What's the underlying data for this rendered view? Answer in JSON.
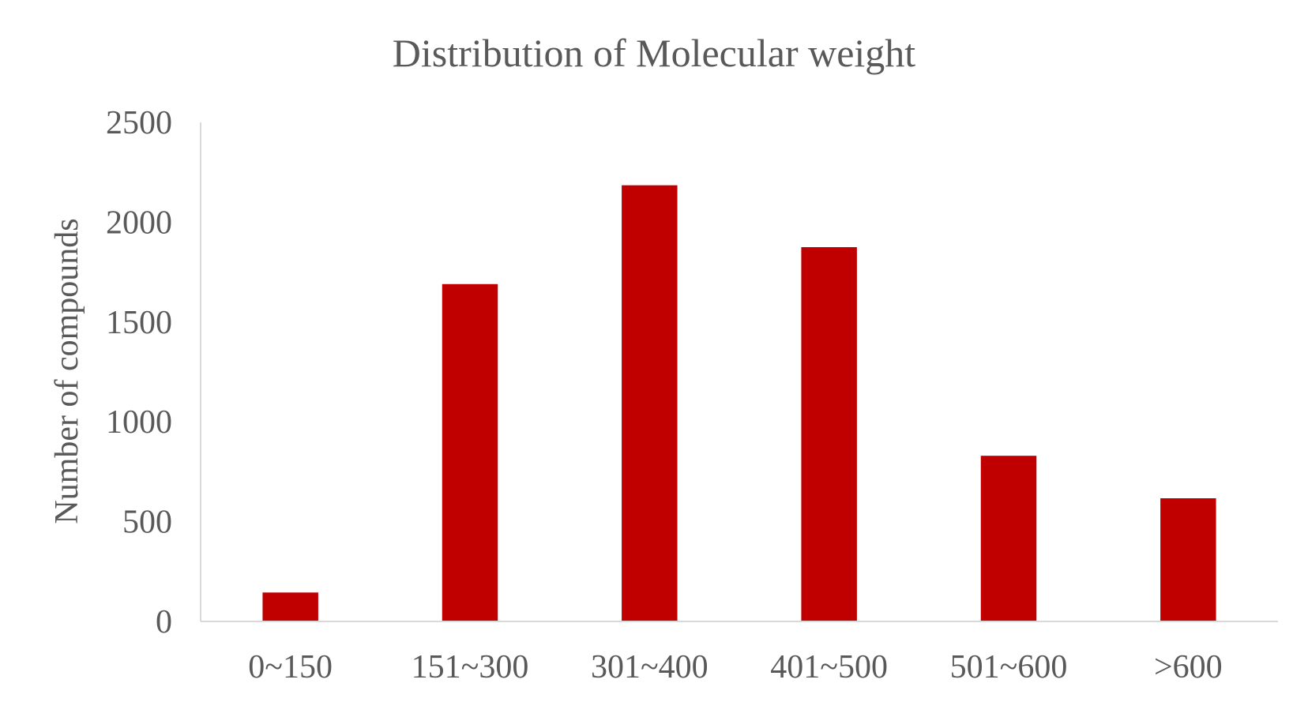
{
  "chart_data": {
    "type": "bar",
    "title": "Distribution of Molecular weight",
    "xlabel": "",
    "ylabel": "Number of compounds",
    "categories": [
      "0~150",
      "151~300",
      "301~400",
      "401~500",
      "501~600",
      ">600"
    ],
    "series": [
      {
        "values": [
          145,
          1690,
          2185,
          1875,
          830,
          617
        ]
      }
    ],
    "ylim": [
      0,
      2500
    ],
    "yticks": [
      "0",
      "500",
      "1000",
      "1500",
      "2000",
      "2500"
    ],
    "grid": false,
    "legend": "none",
    "colors": {
      "bar": "#c00000",
      "text": "#595959",
      "axis": "#d9d9d9"
    }
  }
}
